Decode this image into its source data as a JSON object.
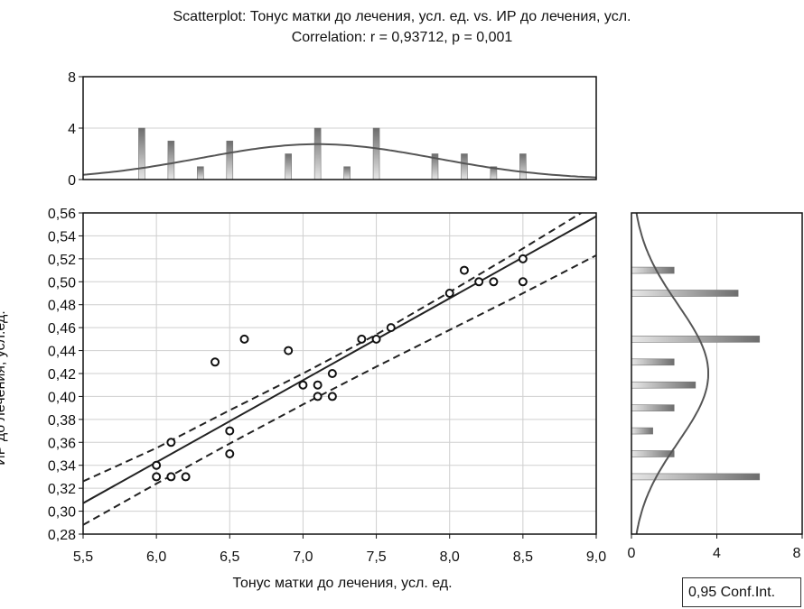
{
  "chart_data": [
    {
      "type": "scatter",
      "title": "Scatterplot: Тонус матки до лечения, усл. ед. vs. ИР до лечения, усл.",
      "subtitle": "Correlation: r = 0,93712, p = 0,001",
      "xlabel": "Тонус матки до лечения, усл. ед.",
      "ylabel": "ИР до лечения, усл.ед.",
      "xlim": [
        5.5,
        9.0
      ],
      "ylim": [
        0.28,
        0.56
      ],
      "x_ticks": [
        "5,5",
        "6,0",
        "6,5",
        "7,0",
        "7,5",
        "8,0",
        "8,5",
        "9,0"
      ],
      "y_ticks": [
        "0,28",
        "0,30",
        "0,32",
        "0,34",
        "0,36",
        "0,38",
        "0,40",
        "0,42",
        "0,44",
        "0,46",
        "0,48",
        "0,50",
        "0,52",
        "0,54",
        "0,56"
      ],
      "grid": true,
      "points": [
        {
          "x": 6.0,
          "y": 0.34
        },
        {
          "x": 6.0,
          "y": 0.33
        },
        {
          "x": 6.1,
          "y": 0.36
        },
        {
          "x": 6.1,
          "y": 0.33
        },
        {
          "x": 6.2,
          "y": 0.33
        },
        {
          "x": 6.4,
          "y": 0.43
        },
        {
          "x": 6.5,
          "y": 0.37
        },
        {
          "x": 6.5,
          "y": 0.35
        },
        {
          "x": 6.6,
          "y": 0.45
        },
        {
          "x": 6.9,
          "y": 0.44
        },
        {
          "x": 7.0,
          "y": 0.41
        },
        {
          "x": 7.1,
          "y": 0.41
        },
        {
          "x": 7.1,
          "y": 0.4
        },
        {
          "x": 7.2,
          "y": 0.42
        },
        {
          "x": 7.2,
          "y": 0.4
        },
        {
          "x": 7.4,
          "y": 0.45
        },
        {
          "x": 7.5,
          "y": 0.45
        },
        {
          "x": 7.6,
          "y": 0.46
        },
        {
          "x": 8.0,
          "y": 0.49
        },
        {
          "x": 8.1,
          "y": 0.51
        },
        {
          "x": 8.2,
          "y": 0.5
        },
        {
          "x": 8.3,
          "y": 0.5
        },
        {
          "x": 8.5,
          "y": 0.52
        },
        {
          "x": 8.5,
          "y": 0.5
        }
      ],
      "regression_line": {
        "x": [
          5.5,
          9.0
        ],
        "y": [
          0.307,
          0.557
        ]
      },
      "ci_upper": {
        "x": [
          5.5,
          6.0,
          6.5,
          7.0,
          7.5,
          8.0,
          8.5,
          9.0
        ],
        "y": [
          0.326,
          0.355,
          0.388,
          0.42,
          0.454,
          0.491,
          0.529,
          0.568
        ]
      },
      "ci_lower": {
        "x": [
          5.5,
          6.0,
          6.5,
          7.0,
          7.5,
          8.0,
          8.5,
          9.0
        ],
        "y": [
          0.288,
          0.324,
          0.359,
          0.393,
          0.426,
          0.458,
          0.49,
          0.523
        ]
      },
      "legend": "0,95 Conf.Int."
    },
    {
      "type": "bar",
      "name": "top-histogram",
      "x_axis": "Тонус матки до лечения, усл. ед.",
      "ylim": [
        0,
        8
      ],
      "y_ticks": [
        "0",
        "4",
        "8"
      ],
      "x": [
        5.9,
        6.1,
        6.3,
        6.5,
        6.9,
        7.1,
        7.3,
        7.5,
        7.9,
        8.1,
        8.3,
        8.5
      ],
      "values": [
        4,
        3,
        1,
        3,
        2,
        4,
        1,
        4,
        2,
        2,
        1,
        2
      ],
      "normal_curve": {
        "mean": 7.1,
        "sd": 0.8,
        "peak": 2.75
      }
    },
    {
      "type": "bar",
      "name": "right-histogram",
      "orientation": "horizontal",
      "y_axis": "ИР до лечения, усл.ед.",
      "xlim": [
        0,
        8
      ],
      "x_ticks": [
        "0",
        "4",
        "8"
      ],
      "y": [
        0.33,
        0.35,
        0.37,
        0.39,
        0.41,
        0.43,
        0.45,
        0.49,
        0.51
      ],
      "values": [
        6,
        2,
        1,
        2,
        3,
        2,
        6,
        5,
        2
      ],
      "normal_curve": {
        "mean": 0.42,
        "sd": 0.06,
        "peak": 3.6
      }
    }
  ]
}
